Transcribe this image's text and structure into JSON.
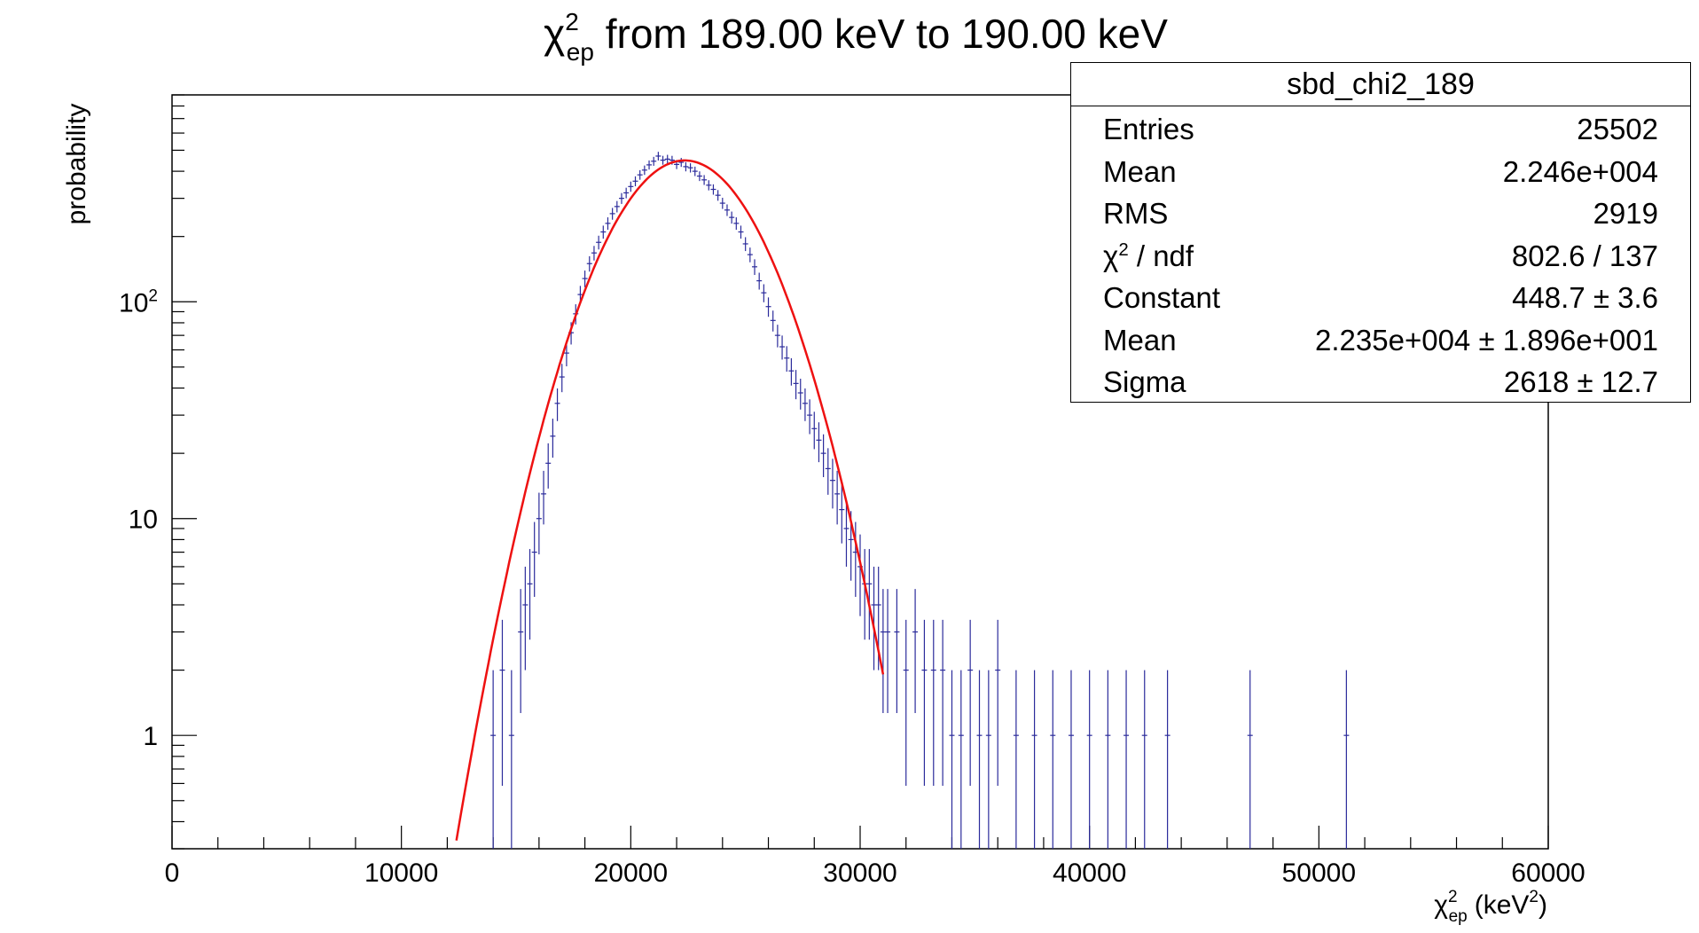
{
  "chart_data": {
    "type": "histogram",
    "title_prefix": "χ",
    "title_sup": "2",
    "title_sub": "ep",
    "title_rest": " from 189.00 keV to 190.00 keV",
    "ylabel": "probability",
    "xlabel_sym": "χ",
    "xlabel_sup": "2",
    "xlabel_sub": "ep",
    "xlabel_unit_pre": "(keV",
    "xlabel_unit_sup": "2",
    "xlabel_unit_post": ")",
    "xlim": [
      0,
      60000
    ],
    "ylim": [
      0.3,
      900
    ],
    "log_y": true,
    "x_ticks": [
      0,
      10000,
      20000,
      30000,
      40000,
      50000,
      60000
    ],
    "x_tick_labels": [
      "0",
      "10000",
      "20000",
      "30000",
      "40000",
      "50000",
      "60000"
    ],
    "y_ticks": [
      1,
      10,
      100
    ],
    "y_tick_labels": [
      "1",
      "10",
      "10^2"
    ],
    "series": [
      {
        "kind": "errorbar-points",
        "color": "#2b2b9b",
        "x": [
          14000,
          14400,
          14800,
          15200,
          15400,
          15600,
          15800,
          16000,
          16200,
          16400,
          16600,
          16800,
          17000,
          17200,
          17400,
          17600,
          17800,
          18000,
          18200,
          18400,
          18600,
          18800,
          19000,
          19200,
          19400,
          19600,
          19800,
          20000,
          20200,
          20400,
          20600,
          20800,
          21000,
          21200,
          21400,
          21600,
          21800,
          22000,
          22200,
          22400,
          22600,
          22800,
          23000,
          23200,
          23400,
          23600,
          23800,
          24000,
          24200,
          24400,
          24600,
          24800,
          25000,
          25200,
          25400,
          25600,
          25800,
          26000,
          26200,
          26400,
          26600,
          26800,
          27000,
          27200,
          27400,
          27600,
          27800,
          28000,
          28200,
          28400,
          28600,
          28800,
          29000,
          29200,
          29400,
          29600,
          29800,
          30000,
          30200,
          30400,
          30600,
          30800,
          31000,
          31200,
          31600,
          32000,
          32400,
          32800,
          33200,
          33600,
          34000,
          34400,
          34800,
          35200,
          35600,
          36000,
          36800,
          37600,
          38400,
          39200,
          40000,
          40800,
          41600,
          42400,
          43400,
          47000,
          51200
        ],
        "y": [
          1,
          2,
          1,
          3,
          4,
          5,
          7,
          10,
          13,
          18,
          24,
          34,
          45,
          58,
          72,
          88,
          108,
          128,
          150,
          168,
          188,
          210,
          230,
          255,
          275,
          300,
          318,
          340,
          360,
          385,
          405,
          428,
          445,
          470,
          450,
          455,
          450,
          430,
          440,
          420,
          415,
          400,
          380,
          365,
          345,
          330,
          310,
          285,
          265,
          245,
          230,
          210,
          185,
          165,
          145,
          125,
          110,
          95,
          82,
          70,
          62,
          55,
          48,
          42,
          38,
          34,
          30,
          26,
          23,
          20,
          17,
          15,
          13,
          11,
          9,
          8,
          7,
          6,
          5,
          5,
          4,
          4,
          3,
          3,
          3,
          2,
          3,
          2,
          2,
          2,
          1,
          1,
          2,
          1,
          1,
          2,
          1,
          1,
          1,
          1,
          1,
          1,
          1,
          1,
          1,
          1,
          1
        ]
      },
      {
        "kind": "gaussian-fit",
        "color": "#ee1111",
        "constant": 448.7,
        "mean": 22350,
        "sigma": 2618,
        "x_range": [
          12000,
          31000
        ]
      }
    ]
  },
  "stats": {
    "title": "sbd_chi2_189",
    "rows": [
      {
        "key": "Entries",
        "value": "25502"
      },
      {
        "key": "Mean",
        "value": "2.246e+004"
      },
      {
        "key": "RMS",
        "value": "2919"
      },
      {
        "key": "χ",
        "key_sup": "2",
        "key_post": " / ndf",
        "value": "802.6 / 137"
      },
      {
        "key": "Constant",
        "value": "448.7 ± 3.6"
      },
      {
        "key": "Mean",
        "value": "2.235e+004  ± 1.896e+001"
      },
      {
        "key": "Sigma",
        "value": "2618 ± 12.7"
      }
    ]
  }
}
